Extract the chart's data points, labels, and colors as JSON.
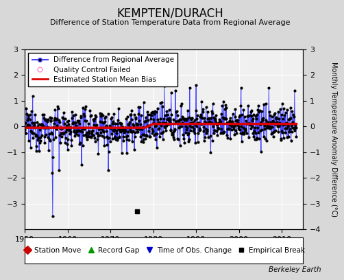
{
  "title": "KEMPTEN/DURACH",
  "subtitle": "Difference of Station Temperature Data from Regional Average",
  "ylabel": "Monthly Temperature Anomaly Difference (°C)",
  "xlabel_years": [
    1950,
    1960,
    1970,
    1980,
    1990,
    2000,
    2010
  ],
  "xlim": [
    1950,
    2015
  ],
  "ylim": [
    -4,
    3
  ],
  "yticks_left": [
    -3,
    -2,
    -1,
    0,
    1,
    2,
    3
  ],
  "yticks_right": [
    -4,
    -3,
    -2,
    -1,
    0,
    1,
    2,
    3
  ],
  "bg_color": "#d8d8d8",
  "plot_bg_color": "#f0f0f0",
  "line_color": "#4444ff",
  "marker_color": "#000000",
  "bias_line_color": "#dd0000",
  "legend_labels": [
    "Difference from Regional Average",
    "Quality Control Failed",
    "Estimated Station Mean Bias"
  ],
  "bottom_legend_labels": [
    "Station Move",
    "Record Gap",
    "Time of Obs. Change",
    "Empirical Break"
  ],
  "watermark": "Berkeley Earth",
  "empirical_break_x": 1976.25,
  "empirical_break_y": -3.3,
  "seed": 12345
}
